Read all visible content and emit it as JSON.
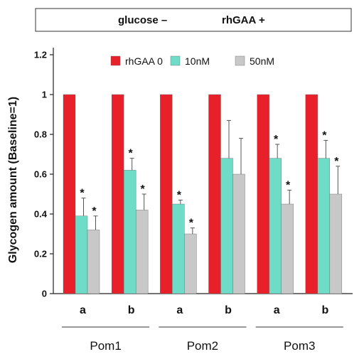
{
  "header": {
    "left_label": "glucose –",
    "right_label": "rhGAA +"
  },
  "chart_data": {
    "type": "bar",
    "ylabel": "Glycogen amount (Baseline=1)",
    "ylim": [
      0,
      1.2
    ],
    "yticks": [
      "0",
      "0.2",
      "0.4",
      "0.6",
      "0.8",
      "1",
      "1.2"
    ],
    "categories": [
      "a",
      "b",
      "a",
      "b",
      "a",
      "b"
    ],
    "groups": [
      {
        "label": "Pom1",
        "span": [
          0,
          1
        ]
      },
      {
        "label": "Pom2",
        "span": [
          2,
          3
        ]
      },
      {
        "label": "Pom3",
        "span": [
          4,
          5
        ]
      }
    ],
    "legend_position": "top-right",
    "series": [
      {
        "name": "rhGAA 0",
        "color": "#e8202a",
        "values": [
          1,
          1,
          1,
          1,
          1,
          1
        ],
        "errors": [
          0,
          0,
          0,
          0,
          0,
          0
        ],
        "significant": [
          false,
          false,
          false,
          false,
          false,
          false
        ]
      },
      {
        "name": "10nM",
        "color": "#6fdcc8",
        "values": [
          0.39,
          0.62,
          0.45,
          0.68,
          0.68,
          0.68
        ],
        "errors": [
          0.09,
          0.06,
          0.02,
          0.19,
          0.07,
          0.09
        ],
        "significant": [
          true,
          true,
          true,
          false,
          true,
          true
        ]
      },
      {
        "name": "50nM",
        "color": "#c8c8c8",
        "values": [
          0.32,
          0.42,
          0.3,
          0.6,
          0.45,
          0.5
        ],
        "errors": [
          0.07,
          0.08,
          0.03,
          0.18,
          0.07,
          0.14
        ],
        "significant": [
          true,
          true,
          true,
          false,
          true,
          true
        ]
      }
    ],
    "significance_marker": "*"
  }
}
